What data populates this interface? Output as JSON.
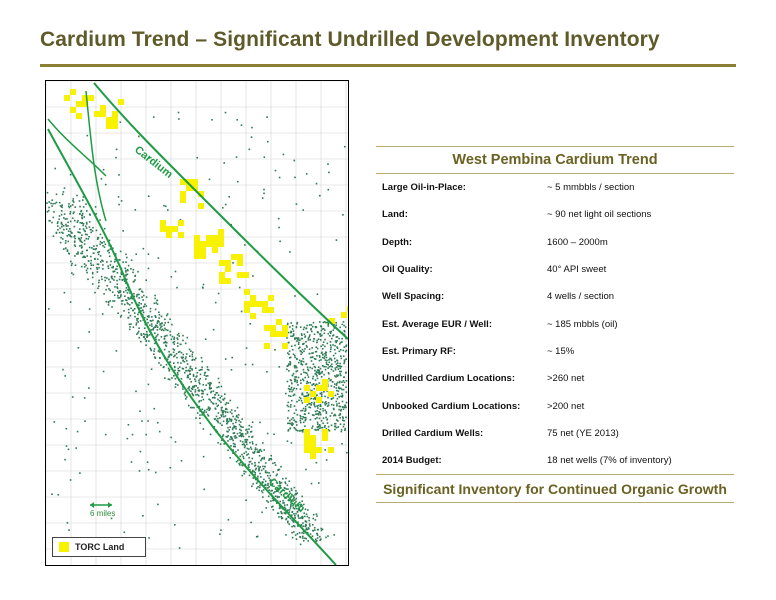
{
  "title": "Cardium Trend – Significant Undrilled Development Inventory",
  "map": {
    "trend_label_top": "Cardium",
    "trend_label_bottom": "Cardium",
    "scale_label": "6 miles",
    "legend_label": "TORC Land",
    "colors": {
      "land": "#f8f200",
      "trend_line": "#1f9b45",
      "wells": "#2f7b55",
      "grid": "#d4d4d4"
    }
  },
  "panel": {
    "title": "West Pembina Cardium Trend",
    "rows": [
      {
        "label": "Large Oil-in-Place:",
        "value": "~ 5 mmbbls / section"
      },
      {
        "label": "Land:",
        "value": "~ 90 net light oil sections"
      },
      {
        "label": "Depth:",
        "value": "1600 – 2000m"
      },
      {
        "label": "Oil Quality:",
        "value": "40° API  sweet"
      },
      {
        "label": "Well Spacing:",
        "value": "4 wells / section"
      },
      {
        "label": "Est. Average EUR / Well:",
        "value": "~ 185 mbbls (oil)"
      },
      {
        "label": "Est. Primary RF:",
        "value": "~ 15%"
      },
      {
        "label": "Undrilled Cardium Locations:",
        "value": ">260 net"
      },
      {
        "label": "Unbooked Cardium Locations:",
        "value": ">200 net"
      },
      {
        "label": "Drilled Cardium Wells:",
        "value": "75 net (YE 2013)"
      },
      {
        "label": "2014 Budget:",
        "value": "18 net wells (7% of inventory)"
      }
    ],
    "footer": "Significant Inventory for Continued Organic Growth"
  }
}
